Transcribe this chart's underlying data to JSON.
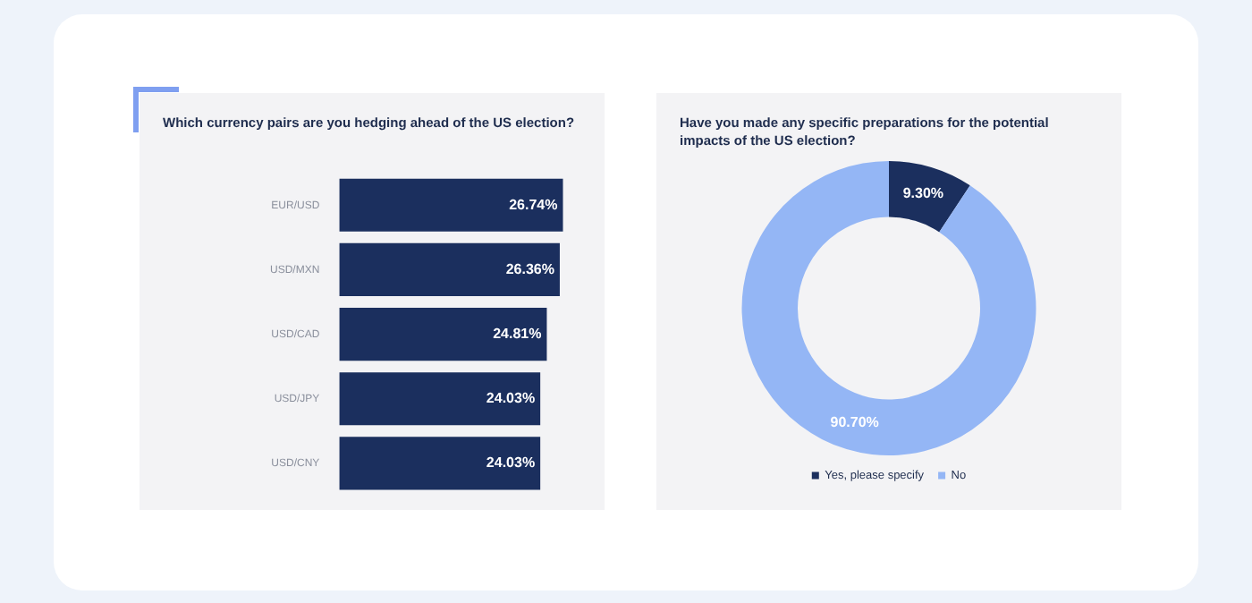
{
  "chart_data": [
    {
      "type": "bar",
      "orientation": "horizontal",
      "title": "Which currency pairs are you hedging ahead of the US election?",
      "categories": [
        "EUR/USD",
        "USD/MXN",
        "USD/CAD",
        "USD/JPY",
        "USD/CNY"
      ],
      "values": [
        26.74,
        26.36,
        24.81,
        24.03,
        24.03
      ],
      "value_labels": [
        "26.74%",
        "26.36%",
        "24.81%",
        "24.03%",
        "24.03%"
      ],
      "color": "#1b2f5e",
      "tick_labels": "y",
      "grid": false,
      "legend": false
    },
    {
      "type": "donut",
      "title": "Have you made any specific preparations for the potential impacts of the US election?",
      "categories": [
        "Yes, please specify",
        "No"
      ],
      "values": [
        9.3,
        90.7
      ],
      "value_labels": [
        "9.30%",
        "90.70%"
      ],
      "colors": [
        "#1b2f5e",
        "#94b6f5"
      ],
      "legend": "bottom"
    }
  ]
}
